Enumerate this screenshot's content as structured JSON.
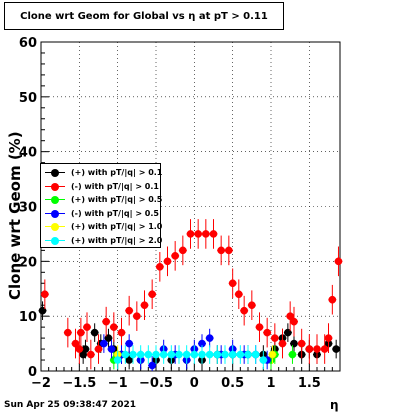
{
  "title": "Clone wrt Geom for Global vs   η at pT > 0.11",
  "footer": "Sun Apr 25 09:38:47 2021",
  "chart_data": {
    "type": "scatter",
    "xlabel": "η",
    "ylabel": "Clone wrt Geom (%)",
    "xlim": [
      -2,
      1.9
    ],
    "ylim": [
      0,
      60
    ],
    "xticks": [
      -2,
      -1.5,
      -1,
      -0.5,
      0,
      0.5,
      1,
      1.5
    ],
    "xtick_labels": [
      "−2",
      "−1.5",
      "−1",
      "−0.5",
      "0",
      "0.5",
      "1",
      "1.5"
    ],
    "yticks": [
      0,
      10,
      20,
      30,
      40,
      50,
      60
    ],
    "ytick_labels": [
      "0",
      "10",
      "20",
      "30",
      "40",
      "50",
      "60"
    ],
    "grid": true,
    "legend_position": "center-left",
    "series": [
      {
        "name": "(+) with pT/|q| > 0.1",
        "color": "#000000",
        "points": [
          [
            -1.98,
            11
          ],
          [
            -1.45,
            3
          ],
          [
            -1.42,
            4
          ],
          [
            -1.3,
            7
          ],
          [
            -1.22,
            5
          ],
          [
            -1.12,
            6
          ],
          [
            -1.05,
            4
          ],
          [
            -0.95,
            3
          ],
          [
            -0.85,
            2
          ],
          [
            -0.7,
            2
          ],
          [
            -0.5,
            2
          ],
          [
            -0.3,
            2
          ],
          [
            -0.1,
            2
          ],
          [
            0.1,
            2
          ],
          [
            0.3,
            3
          ],
          [
            0.5,
            3
          ],
          [
            0.7,
            3
          ],
          [
            0.9,
            3
          ],
          [
            1.05,
            4
          ],
          [
            1.15,
            6
          ],
          [
            1.22,
            7
          ],
          [
            1.3,
            5
          ],
          [
            1.4,
            3
          ],
          [
            1.5,
            4
          ],
          [
            1.6,
            3
          ],
          [
            1.75,
            5
          ],
          [
            1.85,
            4
          ]
        ]
      },
      {
        "name": "(-) with pT/|q| > 0.1",
        "color": "#ff0000",
        "points": [
          [
            -1.95,
            14
          ],
          [
            -1.65,
            7
          ],
          [
            -1.55,
            5
          ],
          [
            -1.5,
            4
          ],
          [
            -1.48,
            7
          ],
          [
            -1.4,
            8
          ],
          [
            -1.35,
            3
          ],
          [
            -1.25,
            4
          ],
          [
            -1.15,
            9
          ],
          [
            -1.05,
            8
          ],
          [
            -0.95,
            7
          ],
          [
            -0.85,
            11
          ],
          [
            -0.75,
            10
          ],
          [
            -0.65,
            12
          ],
          [
            -0.55,
            14
          ],
          [
            -0.45,
            19
          ],
          [
            -0.35,
            20
          ],
          [
            -0.25,
            21
          ],
          [
            -0.15,
            22
          ],
          [
            -0.05,
            25
          ],
          [
            0.05,
            25
          ],
          [
            0.15,
            25
          ],
          [
            0.25,
            25
          ],
          [
            0.35,
            22
          ],
          [
            0.45,
            22
          ],
          [
            0.5,
            16
          ],
          [
            0.58,
            14
          ],
          [
            0.65,
            11
          ],
          [
            0.75,
            12
          ],
          [
            0.85,
            8
          ],
          [
            0.95,
            7
          ],
          [
            1.05,
            6
          ],
          [
            1.15,
            5
          ],
          [
            1.25,
            10
          ],
          [
            1.3,
            9
          ],
          [
            1.4,
            5
          ],
          [
            1.5,
            4
          ],
          [
            1.6,
            4
          ],
          [
            1.7,
            4
          ],
          [
            1.75,
            6
          ],
          [
            1.8,
            13
          ],
          [
            1.88,
            20
          ]
        ]
      },
      {
        "name": "(+) with pT/|q| > 0.5",
        "color": "#00ff00",
        "points": [
          [
            -1.05,
            2
          ],
          [
            1.0,
            2
          ],
          [
            1.05,
            3
          ],
          [
            1.28,
            3
          ]
        ]
      },
      {
        "name": "(-) with pT/|q| > 0.5",
        "color": "#0000ff",
        "points": [
          [
            -1.18,
            5
          ],
          [
            -1.08,
            4
          ],
          [
            -0.95,
            3
          ],
          [
            -0.85,
            5
          ],
          [
            -0.7,
            2
          ],
          [
            -0.55,
            1
          ],
          [
            -0.4,
            4
          ],
          [
            -0.25,
            3
          ],
          [
            -0.1,
            2
          ],
          [
            0.0,
            4
          ],
          [
            0.1,
            5
          ],
          [
            0.2,
            6
          ],
          [
            0.35,
            3
          ],
          [
            0.5,
            4
          ],
          [
            0.65,
            3
          ],
          [
            0.8,
            3
          ],
          [
            0.95,
            2
          ]
        ]
      },
      {
        "name": "(+) with pT/|q| > 1.0",
        "color": "#ffff00",
        "points": [
          [
            -1.0,
            3
          ],
          [
            1.02,
            3
          ]
        ]
      },
      {
        "name": "(+) with pT/|q| > 2.0",
        "color": "#00ffff",
        "points": [
          [
            -1.0,
            2
          ],
          [
            -0.9,
            3
          ],
          [
            -0.8,
            3
          ],
          [
            -0.7,
            3
          ],
          [
            -0.6,
            3
          ],
          [
            -0.5,
            3
          ],
          [
            -0.4,
            3
          ],
          [
            -0.3,
            3
          ],
          [
            -0.2,
            3
          ],
          [
            -0.1,
            3
          ],
          [
            0.0,
            3
          ],
          [
            0.1,
            3
          ],
          [
            0.2,
            3
          ],
          [
            0.3,
            3
          ],
          [
            0.4,
            3
          ],
          [
            0.5,
            3
          ],
          [
            0.6,
            3
          ],
          [
            0.7,
            3
          ],
          [
            0.8,
            3
          ],
          [
            0.9,
            2
          ]
        ]
      }
    ]
  }
}
